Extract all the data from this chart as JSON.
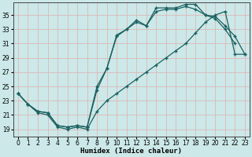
{
  "xlabel": "Humidex (Indice chaleur)",
  "bg_color": "#cce8e8",
  "grid_color": "#ddb8b8",
  "line_color": "#1a6060",
  "xlim": [
    -0.5,
    23.5
  ],
  "ylim": [
    18.0,
    36.8
  ],
  "yticks": [
    19,
    21,
    23,
    25,
    27,
    29,
    31,
    33,
    35
  ],
  "xticks": [
    0,
    1,
    2,
    3,
    4,
    5,
    6,
    7,
    8,
    9,
    10,
    11,
    12,
    13,
    14,
    15,
    16,
    17,
    18,
    19,
    20,
    21,
    22,
    23
  ],
  "line1_x": [
    0,
    1,
    2,
    3,
    4,
    5,
    6,
    7,
    8,
    9,
    10,
    11,
    12,
    13,
    14,
    15,
    16,
    17,
    18,
    19,
    20,
    21,
    22
  ],
  "line1_y": [
    24.0,
    22.5,
    21.5,
    21.3,
    19.5,
    19.3,
    19.5,
    19.3,
    24.5,
    27.5,
    32.2,
    33.0,
    34.3,
    33.5,
    36.0,
    36.0,
    36.0,
    36.5,
    36.5,
    35.0,
    34.5,
    33.0,
    31.0
  ],
  "line2_x": [
    0,
    1,
    2,
    3,
    4,
    5,
    6,
    7,
    8,
    9,
    10,
    11,
    12,
    13,
    14,
    15,
    16,
    17,
    18,
    19,
    20,
    21,
    22,
    23
  ],
  "line2_y": [
    24.0,
    22.5,
    21.5,
    21.3,
    19.5,
    19.3,
    19.5,
    19.3,
    25.0,
    27.5,
    32.0,
    33.0,
    34.0,
    33.5,
    35.5,
    35.8,
    35.8,
    36.2,
    35.8,
    35.0,
    34.8,
    33.5,
    32.0,
    29.5
  ],
  "line3_x": [
    0,
    1,
    2,
    3,
    4,
    5,
    6,
    7,
    8,
    9,
    10,
    11,
    12,
    13,
    14,
    15,
    16,
    17,
    18,
    19,
    20,
    21,
    22,
    23
  ],
  "line3_y": [
    24.0,
    22.5,
    21.3,
    21.0,
    19.3,
    19.0,
    19.3,
    19.0,
    21.5,
    23.0,
    24.0,
    25.0,
    26.0,
    27.0,
    28.0,
    29.0,
    30.0,
    31.0,
    32.5,
    34.0,
    35.0,
    35.5,
    29.5,
    29.5
  ]
}
